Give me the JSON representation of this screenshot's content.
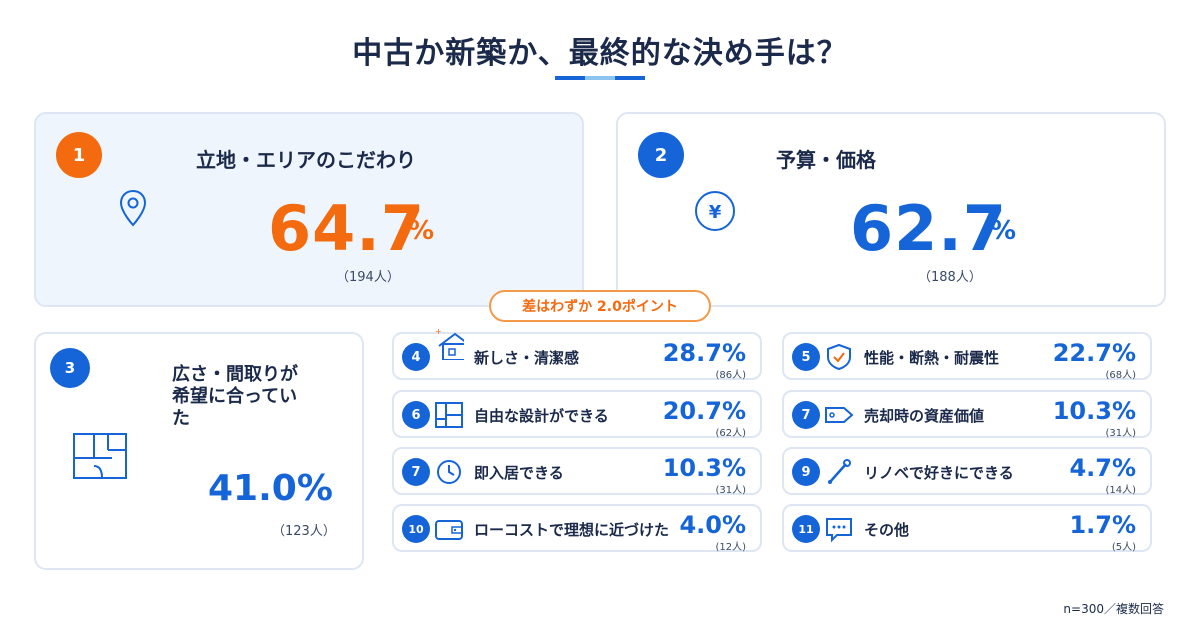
{
  "title": "中古か新築か、最終的な決め手は？",
  "diff_note": "差はわずか 2.0ポイント",
  "footnote": "n=300／複数回答",
  "top": [
    {
      "rank": "1",
      "label": "立地・エリアのこだわり",
      "value": "64.7",
      "unit": "%",
      "count": "（194人）",
      "icon": "location-pin-icon"
    },
    {
      "rank": "2",
      "label": "予算・価格",
      "value": "62.7",
      "unit": "%",
      "count": "（188人）",
      "icon": "yen-coin-icon"
    },
    {
      "rank": "3",
      "label_line1": "広さ・間取りが",
      "label_line2": "希望に合ってい",
      "label_line3": "た",
      "value": "41.0%",
      "count": "（123人）",
      "icon": "floor-plan-icon"
    }
  ],
  "items": [
    {
      "rank": "4",
      "label": "新しさ・清潔感",
      "value": "28.7%",
      "count": "(86人)",
      "icon": "house-sparkle-icon"
    },
    {
      "rank": "5",
      "label": "性能・断熱・耐震性",
      "value": "22.7%",
      "count": "(68人)",
      "icon": "shield-check-icon"
    },
    {
      "rank": "6",
      "label": "自由な設計ができる",
      "value": "20.7%",
      "count": "(62人)",
      "icon": "layout-icon"
    },
    {
      "rank": "7",
      "label": "売却時の資産価値",
      "value": "10.3%",
      "count": "(31人)",
      "icon": "price-tag-icon"
    },
    {
      "rank": "7",
      "label": "即入居できる",
      "value": "10.3%",
      "count": "(31人)",
      "icon": "clock-icon"
    },
    {
      "rank": "9",
      "label": "リノベで好きにできる",
      "value": "4.7%",
      "count": "(14人)",
      "icon": "wrench-icon"
    },
    {
      "rank": "10",
      "label": "ローコストで理想に近づけた",
      "value": "4.0%",
      "count": "(12人)",
      "icon": "wallet-icon"
    },
    {
      "rank": "11",
      "label": "その他",
      "value": "1.7%",
      "count": "(5人)",
      "icon": "speech-bubble-icon"
    }
  ],
  "chart_data": {
    "type": "table",
    "title": "中古か新築か、最終的な決め手は？",
    "categories": [
      "立地・エリアのこだわり",
      "予算・価格",
      "広さ・間取りが希望に合っていた",
      "新しさ・清潔感",
      "性能・断熱・耐震性",
      "自由な設計ができる",
      "売却時の資産価値",
      "即入居できる",
      "リノベで好きにできる",
      "ローコストで理想に近づけた",
      "その他"
    ],
    "values": [
      64.7,
      62.7,
      41.0,
      28.7,
      22.7,
      20.7,
      10.3,
      10.3,
      4.7,
      4.0,
      1.7
    ],
    "counts": [
      194,
      188,
      123,
      86,
      68,
      62,
      31,
      31,
      14,
      12,
      5
    ],
    "unit": "%"
  },
  "colors": {
    "accent_blue": "#1565d8",
    "accent_orange": "#f36a0f",
    "navy": "#1b2a4a"
  }
}
